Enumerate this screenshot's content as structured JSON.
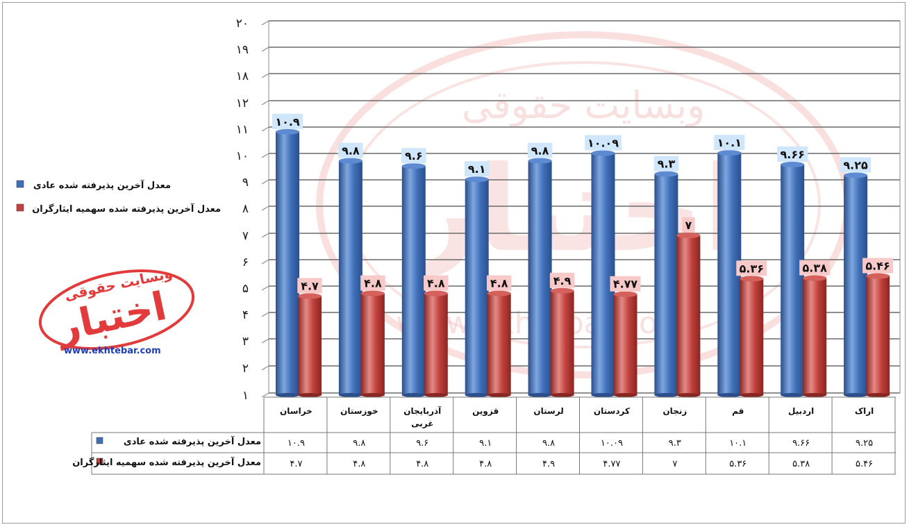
{
  "chart_data": {
    "type": "bar",
    "title": "",
    "xlabel": "",
    "ylabel": "",
    "ylim": [
      1,
      20
    ],
    "yticks": [
      "۱",
      "۲",
      "۳",
      "۴",
      "۵",
      "۶",
      "۷",
      "۸",
      "۹",
      "۱۰",
      "۱۱",
      "۱۲",
      "۱۸",
      "۱۹",
      "۲۰"
    ],
    "ytick_values": [
      1,
      2,
      3,
      4,
      5,
      6,
      7,
      8,
      9,
      10,
      11,
      12,
      18,
      19,
      20
    ],
    "grid": true,
    "legend_position": "left",
    "categories": [
      "خراسان",
      "خوزستان",
      "آذربایجان غربی",
      "قزوین",
      "لرستان",
      "کردستان",
      "زنجان",
      "قم",
      "اردبیل",
      "اراک"
    ],
    "series": [
      {
        "name": "معدل آخرین پذیرفته شده عادی",
        "color": "#3f6fb8",
        "values": [
          10.9,
          9.8,
          9.6,
          9.1,
          9.8,
          10.09,
          9.3,
          10.1,
          9.66,
          9.25
        ],
        "labels": [
          "۱۰.۹",
          "۹.۸",
          "۹.۶",
          "۹.۱",
          "۹.۸",
          "۱۰.۰۹",
          "۹.۳",
          "۱۰.۱",
          "۹.۶۶",
          "۹.۲۵"
        ]
      },
      {
        "name": "معدل آخرین پذیرفته شده سهمیه ایثارگران",
        "color": "#c0403c",
        "values": [
          4.7,
          4.8,
          4.8,
          4.8,
          4.9,
          4.77,
          7,
          5.36,
          5.38,
          5.46
        ],
        "labels": [
          "۴.۷",
          "۴.۸",
          "۴.۸",
          "۴.۸",
          "۴.۹",
          "۴.۷۷",
          "۷",
          "۵.۳۶",
          "۵.۳۸",
          "۵.۴۶"
        ]
      }
    ]
  },
  "watermark": {
    "site_text": "وبسایت حقوقی",
    "brand_text": "اختبار",
    "url": "www.ekhtebar.com",
    "color": "#e23b3b"
  }
}
